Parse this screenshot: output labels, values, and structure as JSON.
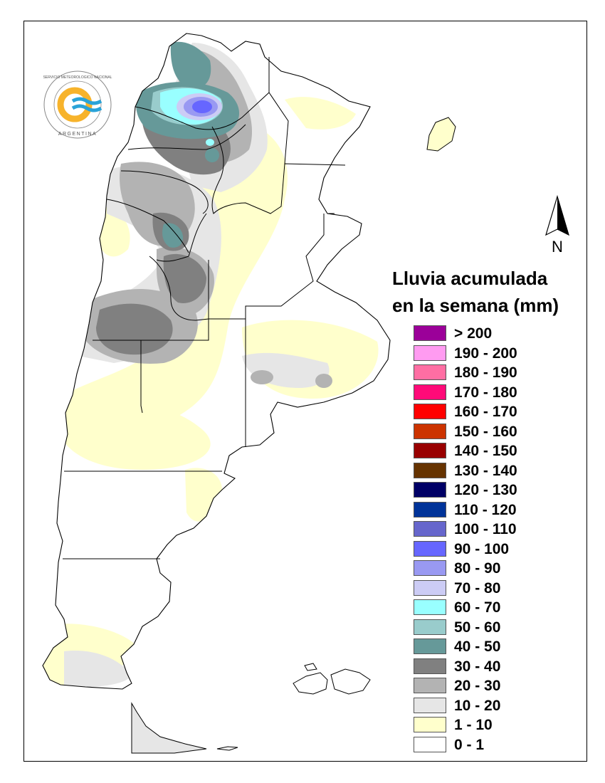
{
  "legend": {
    "title_line1": "Lluvia acumulada",
    "title_line2": "en la semana (mm)",
    "items": [
      {
        "label": "> 200",
        "color": "#9b0099"
      },
      {
        "label": "190 - 200",
        "color": "#ff9bf1"
      },
      {
        "label": "180 - 190",
        "color": "#ff6ea3"
      },
      {
        "label": "170 - 180",
        "color": "#ff0a78"
      },
      {
        "label": "160 - 170",
        "color": "#ff0000"
      },
      {
        "label": "150 - 160",
        "color": "#cc3300"
      },
      {
        "label": "140 - 150",
        "color": "#990000"
      },
      {
        "label": "130 - 140",
        "color": "#663300"
      },
      {
        "label": "120 - 130",
        "color": "#000066"
      },
      {
        "label": "110 - 120",
        "color": "#003399"
      },
      {
        "label": "100 - 110",
        "color": "#6666cc"
      },
      {
        "label": "90 - 100",
        "color": "#6666ff"
      },
      {
        "label": "80 - 90",
        "color": "#9999f2"
      },
      {
        "label": "70 - 80",
        "color": "#ccccf5"
      },
      {
        "label": "60 - 70",
        "color": "#99ffff"
      },
      {
        "label": "50 - 60",
        "color": "#99cccc"
      },
      {
        "label": "40 - 50",
        "color": "#669999"
      },
      {
        "label": "30 - 40",
        "color": "#808080"
      },
      {
        "label": "20 - 30",
        "color": "#b3b3b3"
      },
      {
        "label": "10 - 20",
        "color": "#e6e6e6"
      },
      {
        "label": "1 - 10",
        "color": "#ffffcc"
      },
      {
        "label": "0 - 1",
        "color": "#ffffff"
      }
    ]
  },
  "north_arrow": {
    "label": "N"
  },
  "logo": {
    "ring_text": "SERVICIO METEOROLOGICO NACIONAL",
    "country": "ARGENTINA"
  }
}
